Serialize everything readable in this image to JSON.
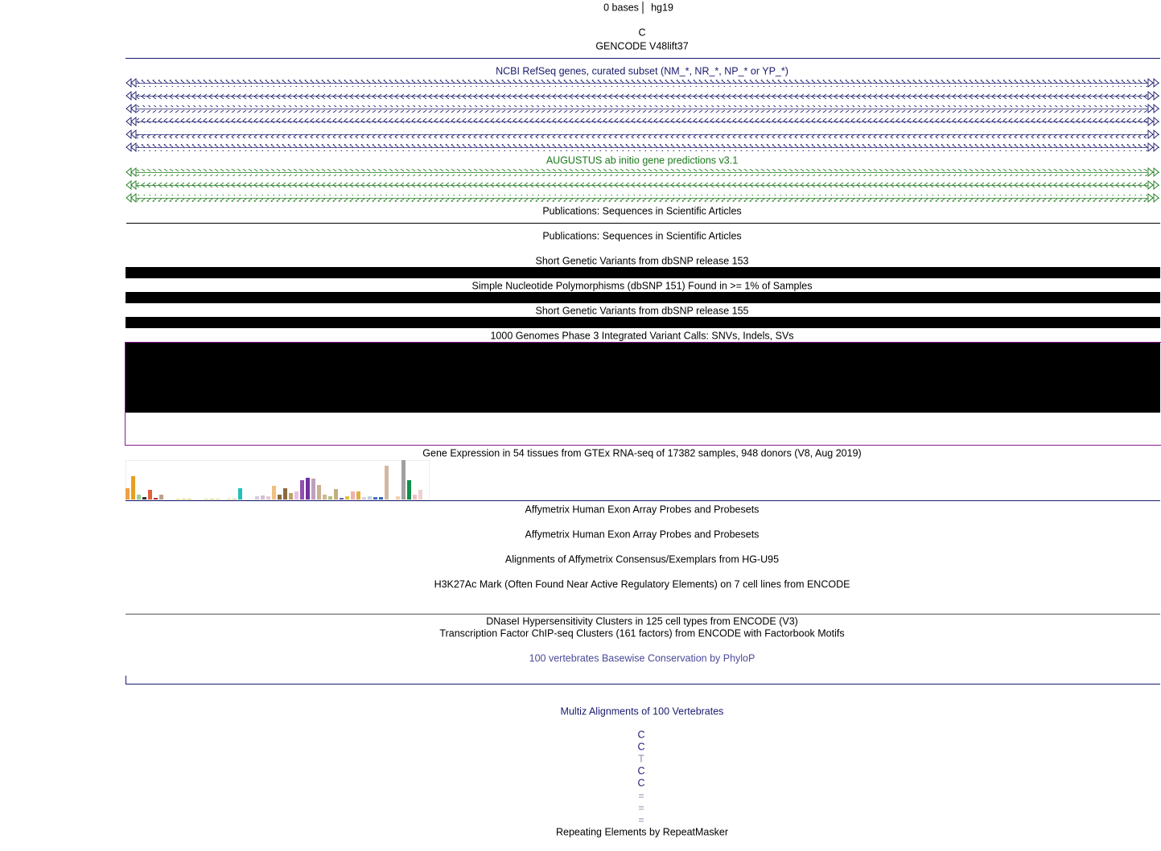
{
  "header": {
    "scale_label": "0 bases",
    "assembly": "hg19"
  },
  "base": "C",
  "tracks": {
    "gencode": "GENCODE V48lift37",
    "refseq": "NCBI RefSeq genes, curated subset (NM_*, NR_*, NP_* or YP_*)",
    "augustus": "AUGUSTUS ab initio gene predictions v3.1",
    "pubs1": "Publications: Sequences in Scientific Articles",
    "pubs2": "Publications: Sequences in Scientific Articles",
    "dbsnp153": "Short Genetic Variants from dbSNP release 153",
    "snp151": "Simple Nucleotide Polymorphisms (dbSNP 151) Found in >= 1% of Samples",
    "dbsnp155": "Short Genetic Variants from dbSNP release 155",
    "kg": "1000 Genomes Phase 3 Integrated Variant Calls: SNVs, Indels, SVs",
    "gtex": "Gene Expression in 54 tissues from GTEx RNA-seq of 17382 samples, 948 donors (V8, Aug 2019)",
    "affy1": "Affymetrix Human Exon Array Probes and Probesets",
    "affy2": "Affymetrix Human Exon Array Probes and Probesets",
    "affyu95": "Alignments of Affymetrix Consensus/Exemplars from HG-U95",
    "h3k27ac": "H3K27Ac Mark (Often Found Near Active Regulatory Elements) on 7 cell lines from ENCODE",
    "dnase": "DNaseI Hypersensitivity Clusters in 125 cell types from ENCODE (V3)",
    "tfbs": "Transcription Factor ChIP-seq Clusters (161 factors) from ENCODE with Factorbook Motifs",
    "phylop": "100 vertebrates Basewise Conservation by PhyloP",
    "multiz": "Multiz Alignments of 100 Vertebrates",
    "rmsk": "Repeating Elements by RepeatMasker"
  },
  "multiz_bases": [
    "C",
    "C",
    "T",
    "C",
    "C",
    "=",
    "=",
    "="
  ]
}
